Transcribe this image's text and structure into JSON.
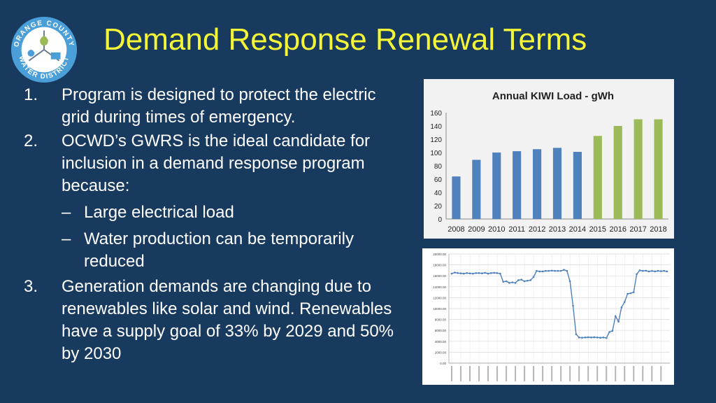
{
  "slide": {
    "title": "Demand Response Renewal Terms"
  },
  "logo": {
    "ring_text": "ORANGE COUNTY WATER DISTRICT",
    "ring_color": "#4a9fd8"
  },
  "body": {
    "items": [
      {
        "num": "1.",
        "text": "Program is designed to protect the electric grid during times of emergency."
      },
      {
        "num": "2.",
        "text": "OCWD’s GWRS is the ideal candidate for inclusion in a demand response program because:"
      },
      {
        "num": "3.",
        "text": "Generation demands are changing due  to renewables like solar and wind. Renewables have a supply goal of 33% by 2029 and 50% by 2030"
      }
    ],
    "sub_items": [
      {
        "dash": "–",
        "text": "Large electrical load"
      },
      {
        "dash": "–",
        "text": "Water production can be temporarily reduced"
      }
    ]
  },
  "chart_data": [
    {
      "type": "bar",
      "title": "Annual KIWI Load - gWh",
      "categories": [
        "2008",
        "2009",
        "2010",
        "2011",
        "2012",
        "2013",
        "2014",
        "2015",
        "2016",
        "2017",
        "2018"
      ],
      "values": [
        64,
        89,
        100,
        102,
        105,
        107,
        101,
        125,
        140,
        150,
        150
      ],
      "bar_colors": [
        "#4f81bd",
        "#4f81bd",
        "#4f81bd",
        "#4f81bd",
        "#4f81bd",
        "#4f81bd",
        "#4f81bd",
        "#9bbb59",
        "#9bbb59",
        "#9bbb59",
        "#9bbb59"
      ],
      "ylim": [
        0,
        160
      ],
      "yticks": [
        0,
        20,
        40,
        60,
        80,
        100,
        120,
        140,
        160
      ],
      "grid": false
    },
    {
      "type": "line",
      "ylim": [
        0,
        20000
      ],
      "yticks": [
        "0.00",
        "2000.00",
        "4000.00",
        "6000.00",
        "8000.00",
        "10000.00",
        "12000.00",
        "14000.00",
        "16000.00",
        "18000.00",
        "20000.00"
      ],
      "ytick_values": [
        0,
        2000,
        4000,
        6000,
        8000,
        10000,
        12000,
        14000,
        16000,
        18000,
        20000
      ],
      "grid": true,
      "line_color": "#4f81bd",
      "series": [
        {
          "values": [
            16400,
            16600,
            16500,
            16450,
            16400,
            16500,
            16450,
            16400,
            16500,
            16500,
            16450,
            16550,
            16400,
            16500,
            16550,
            16500,
            16400,
            14900,
            15000,
            14700,
            14800,
            14700,
            15200,
            15300,
            15000,
            15100,
            15200,
            15800,
            16900,
            16800,
            16800,
            16900,
            16900,
            16950,
            16900,
            16900,
            16900,
            17100,
            16900,
            15000,
            10500,
            5300,
            4700,
            4650,
            4700,
            4750,
            4700,
            4750,
            4700,
            4650,
            4700,
            4600,
            5700,
            5900,
            8600,
            7600,
            10200,
            11200,
            12700,
            12800,
            13000,
            16300,
            17000,
            16900,
            16950,
            16800,
            16900,
            16800,
            16900,
            16850,
            16900,
            16800
          ]
        }
      ]
    }
  ]
}
